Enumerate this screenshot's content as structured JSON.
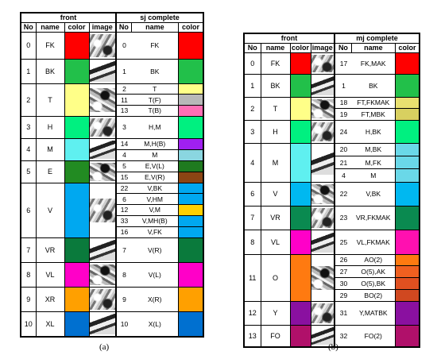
{
  "panel_a": {
    "left_header": "front",
    "right_header": "sj complete",
    "columns": [
      "No",
      "name",
      "color",
      "image",
      "No",
      "name",
      "color"
    ],
    "caption": "(a)",
    "rows": [
      {
        "no": "0",
        "name": "FK",
        "color": "#ff0000",
        "sub": [
          {
            "no": "0",
            "name": "FK",
            "color": "#ff0000"
          }
        ]
      },
      {
        "no": "1",
        "name": "BK",
        "color": "#22c04a",
        "sub": [
          {
            "no": "1",
            "name": "BK",
            "color": "#22c04a"
          }
        ]
      },
      {
        "no": "2",
        "name": "T",
        "color": "#ffff88",
        "sub": [
          {
            "no": "2",
            "name": "T",
            "color": "#ffff88"
          },
          {
            "no": "11",
            "name": "T(F)",
            "color": "#b8b8b8"
          },
          {
            "no": "13",
            "name": "T(B)",
            "color": "#ff6eb4"
          }
        ]
      },
      {
        "no": "3",
        "name": "H",
        "color": "#00f080",
        "sub": [
          {
            "no": "3",
            "name": "H,M",
            "color": "#00f080"
          }
        ]
      },
      {
        "no": "4",
        "name": "M",
        "color": "#5ff0f0",
        "sub": [
          {
            "no": "14",
            "name": "M,H(B)",
            "color": "#a020f0"
          },
          {
            "no": "4",
            "name": "M",
            "color": "#8ad6e0"
          }
        ]
      },
      {
        "no": "5",
        "name": "E",
        "color": "#228b22",
        "sub": [
          {
            "no": "5",
            "name": "E,V(L)",
            "color": "#1f7a1f"
          },
          {
            "no": "15",
            "name": "E,V(R)",
            "color": "#8b4513"
          }
        ]
      },
      {
        "no": "6",
        "name": "V",
        "color": "#00a8f0",
        "sub": [
          {
            "no": "22",
            "name": "V,BK",
            "color": "#00a8f0"
          },
          {
            "no": "6",
            "name": "V,HM",
            "color": "#00a8f0"
          },
          {
            "no": "12",
            "name": "V,M",
            "color": "#ffd000"
          },
          {
            "no": "33",
            "name": "V,MH(B)",
            "color": "#00a8f0"
          },
          {
            "no": "16",
            "name": "V,FK",
            "color": "#00a8f0"
          }
        ]
      },
      {
        "no": "7",
        "name": "VR",
        "color": "#0a7a3c",
        "sub": [
          {
            "no": "7",
            "name": "V(R)",
            "color": "#0a7a3c"
          }
        ]
      },
      {
        "no": "8",
        "name": "VL",
        "color": "#ff00c8",
        "sub": [
          {
            "no": "8",
            "name": "V(L)",
            "color": "#ff00c8"
          }
        ]
      },
      {
        "no": "9",
        "name": "XR",
        "color": "#ffa000",
        "sub": [
          {
            "no": "9",
            "name": "X(R)",
            "color": "#ffa000"
          }
        ]
      },
      {
        "no": "10",
        "name": "XL",
        "color": "#0070d0",
        "sub": [
          {
            "no": "10",
            "name": "X(L)",
            "color": "#0070d0"
          }
        ]
      }
    ]
  },
  "panel_b": {
    "left_header": "front",
    "right_header": "mj complete",
    "columns": [
      "No",
      "name",
      "color",
      "image",
      "No",
      "name",
      "color"
    ],
    "caption": "(b)",
    "rows": [
      {
        "no": "0",
        "name": "FK",
        "color": "#ff0000",
        "sub": [
          {
            "no": "17",
            "name": "FK,MAK",
            "color": "#ff0000"
          }
        ]
      },
      {
        "no": "1",
        "name": "BK",
        "color": "#22c04a",
        "sub": [
          {
            "no": "1",
            "name": "BK",
            "color": "#22c04a"
          }
        ]
      },
      {
        "no": "2",
        "name": "T",
        "color": "#ffff88",
        "sub": [
          {
            "no": "18",
            "name": "FT,FKMAK",
            "color": "#e8e070"
          },
          {
            "no": "19",
            "name": "FT,MBK",
            "color": "#d8d060"
          }
        ]
      },
      {
        "no": "3",
        "name": "H",
        "color": "#00f080",
        "sub": [
          {
            "no": "24",
            "name": "H,BK",
            "color": "#00f080"
          }
        ]
      },
      {
        "no": "4",
        "name": "M",
        "color": "#5ff0f0",
        "sub": [
          {
            "no": "20",
            "name": "M,BK",
            "color": "#6ad8e8"
          },
          {
            "no": "21",
            "name": "M,FK",
            "color": "#6ad8e8"
          },
          {
            "no": "4",
            "name": "M",
            "color": "#6ad8e8"
          }
        ]
      },
      {
        "no": "6",
        "name": "V",
        "color": "#00b8f0",
        "sub": [
          {
            "no": "22",
            "name": "V,BK",
            "color": "#00b8f0"
          }
        ]
      },
      {
        "no": "7",
        "name": "VR",
        "color": "#0a8a50",
        "sub": [
          {
            "no": "23",
            "name": "VR,FKMAK",
            "color": "#0a8a50"
          }
        ]
      },
      {
        "no": "8",
        "name": "VL",
        "color": "#ff00c8",
        "sub": [
          {
            "no": "25",
            "name": "VL,FKMAK",
            "color": "#ff10b0"
          }
        ]
      },
      {
        "no": "11",
        "name": "O",
        "color": "#ff7a10",
        "sub": [
          {
            "no": "26",
            "name": "AO(2)",
            "color": "#ff7a10"
          },
          {
            "no": "27",
            "name": "O(5),AK",
            "color": "#f06020"
          },
          {
            "no": "30",
            "name": "O(5),BK",
            "color": "#e05020"
          },
          {
            "no": "29",
            "name": "BO(2)",
            "color": "#d04820"
          }
        ]
      },
      {
        "no": "12",
        "name": "Y",
        "color": "#8a10a0",
        "sub": [
          {
            "no": "31",
            "name": "Y,MATBK",
            "color": "#8a10a0"
          }
        ]
      },
      {
        "no": "13",
        "name": "FO",
        "color": "#b0106a",
        "sub": [
          {
            "no": "32",
            "name": "FO(2)",
            "color": "#b0106a"
          }
        ]
      }
    ]
  }
}
